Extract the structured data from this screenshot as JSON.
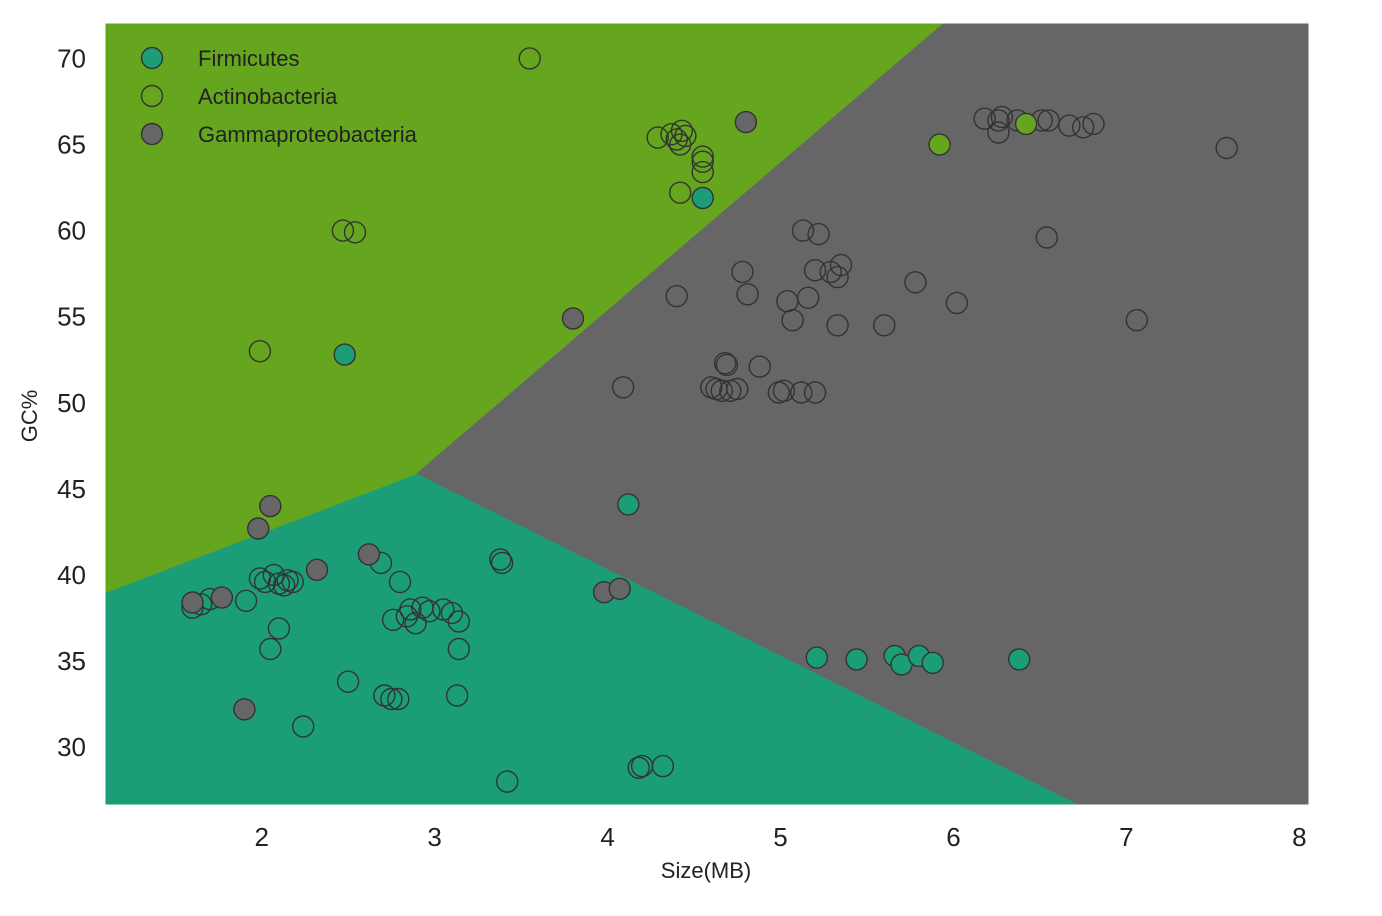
{
  "chart_data": {
    "type": "scatter",
    "title": "",
    "xlabel": "Size(MB)",
    "ylabel": "GC%",
    "xlim": [
      1.1,
      8.05
    ],
    "ylim": [
      26.7,
      72.0
    ],
    "xticks": [
      2,
      3,
      4,
      5,
      6,
      7,
      8
    ],
    "yticks": [
      30,
      35,
      40,
      45,
      50,
      55,
      60,
      65,
      70
    ],
    "grid": false,
    "legend_position": "top-left",
    "decision_regions": [
      {
        "class": "Firmicutes",
        "color": "#1b9e77",
        "polygon": [
          [
            1.1,
            26.7
          ],
          [
            6.72,
            26.7
          ],
          [
            2.9,
            45.9
          ],
          [
            1.1,
            39.0
          ]
        ]
      },
      {
        "class": "Actinobacteria",
        "color": "#66a61e",
        "polygon": [
          [
            1.1,
            72.0
          ],
          [
            5.94,
            72.0
          ],
          [
            2.9,
            45.9
          ],
          [
            1.1,
            39.0
          ]
        ]
      },
      {
        "class": "Gammaproteobacteria",
        "color": "#666666",
        "polygon": [
          [
            5.94,
            72.0
          ],
          [
            8.05,
            72.0
          ],
          [
            8.05,
            26.7
          ],
          [
            6.72,
            26.7
          ],
          [
            2.9,
            45.9
          ]
        ]
      }
    ],
    "series": [
      {
        "name": "Firmicutes",
        "color": "#1b9e77",
        "points": [
          [
            2.48,
            52.8
          ],
          [
            4.55,
            61.9
          ],
          [
            4.12,
            44.1
          ],
          [
            5.21,
            35.2
          ],
          [
            5.44,
            35.1
          ],
          [
            5.66,
            35.3
          ],
          [
            5.7,
            34.8
          ],
          [
            5.8,
            35.3
          ],
          [
            5.88,
            34.9
          ],
          [
            6.38,
            35.1
          ]
        ]
      },
      {
        "name": "Actinobacteria",
        "color": "#66a61e",
        "points": [
          [
            3.55,
            70.0
          ],
          [
            5.92,
            65.0
          ],
          [
            6.42,
            66.2
          ]
        ]
      },
      {
        "name": "Gammaproteobacteria",
        "color": "#666666",
        "points": [
          [
            4.8,
            66.3
          ],
          [
            3.8,
            54.9
          ],
          [
            1.6,
            38.4
          ],
          [
            1.77,
            38.7
          ],
          [
            1.9,
            32.2
          ],
          [
            1.98,
            42.7
          ],
          [
            2.05,
            44.0
          ],
          [
            2.62,
            41.2
          ],
          [
            2.32,
            40.3
          ],
          [
            3.98,
            39.0
          ],
          [
            4.07,
            39.2
          ]
        ]
      }
    ],
    "background_points": [
      [
        2.47,
        60.0
      ],
      [
        2.54,
        59.9
      ],
      [
        1.99,
        53.0
      ],
      [
        4.29,
        65.4
      ],
      [
        4.37,
        65.6
      ],
      [
        4.4,
        65.3
      ],
      [
        4.42,
        65.0
      ],
      [
        4.45,
        65.5
      ],
      [
        4.43,
        65.8
      ],
      [
        4.55,
        64.3
      ],
      [
        4.55,
        64.0
      ],
      [
        4.55,
        63.4
      ],
      [
        4.42,
        62.2
      ],
      [
        6.18,
        66.5
      ],
      [
        6.26,
        66.4
      ],
      [
        6.28,
        66.6
      ],
      [
        6.26,
        65.7
      ],
      [
        6.37,
        66.4
      ],
      [
        6.51,
        66.4
      ],
      [
        6.55,
        66.4
      ],
      [
        6.67,
        66.1
      ],
      [
        6.75,
        66.0
      ],
      [
        6.81,
        66.2
      ],
      [
        7.58,
        64.8
      ],
      [
        5.13,
        60.0
      ],
      [
        5.22,
        59.8
      ],
      [
        6.54,
        59.6
      ],
      [
        4.78,
        57.6
      ],
      [
        5.2,
        57.7
      ],
      [
        5.29,
        57.6
      ],
      [
        5.33,
        57.3
      ],
      [
        5.35,
        58.0
      ],
      [
        5.78,
        57.0
      ],
      [
        4.4,
        56.2
      ],
      [
        4.81,
        56.3
      ],
      [
        5.04,
        55.9
      ],
      [
        5.16,
        56.1
      ],
      [
        6.02,
        55.8
      ],
      [
        5.07,
        54.8
      ],
      [
        5.33,
        54.5
      ],
      [
        5.6,
        54.5
      ],
      [
        7.06,
        54.8
      ],
      [
        4.68,
        52.3
      ],
      [
        4.69,
        52.2
      ],
      [
        4.88,
        52.1
      ],
      [
        4.09,
        50.9
      ],
      [
        4.6,
        50.9
      ],
      [
        4.63,
        50.8
      ],
      [
        4.66,
        50.7
      ],
      [
        4.71,
        50.7
      ],
      [
        4.75,
        50.8
      ],
      [
        4.99,
        50.6
      ],
      [
        5.02,
        50.7
      ],
      [
        5.12,
        50.6
      ],
      [
        5.2,
        50.6
      ],
      [
        1.6,
        38.1
      ],
      [
        1.65,
        38.3
      ],
      [
        1.7,
        38.6
      ],
      [
        1.91,
        38.5
      ],
      [
        1.99,
        39.8
      ],
      [
        2.02,
        39.6
      ],
      [
        2.07,
        40.0
      ],
      [
        2.1,
        39.5
      ],
      [
        2.13,
        39.4
      ],
      [
        2.15,
        39.7
      ],
      [
        2.18,
        39.6
      ],
      [
        2.1,
        36.9
      ],
      [
        2.05,
        35.7
      ],
      [
        2.24,
        31.2
      ],
      [
        2.5,
        33.8
      ],
      [
        2.69,
        40.7
      ],
      [
        2.8,
        39.6
      ],
      [
        2.76,
        37.4
      ],
      [
        2.84,
        37.6
      ],
      [
        2.86,
        38.0
      ],
      [
        2.89,
        37.2
      ],
      [
        2.93,
        38.1
      ],
      [
        2.97,
        37.9
      ],
      [
        3.05,
        38.0
      ],
      [
        3.1,
        37.8
      ],
      [
        3.14,
        37.3
      ],
      [
        3.14,
        35.7
      ],
      [
        3.13,
        33.0
      ],
      [
        2.71,
        33.0
      ],
      [
        2.75,
        32.8
      ],
      [
        2.79,
        32.8
      ],
      [
        3.38,
        40.9
      ],
      [
        3.39,
        40.7
      ],
      [
        3.42,
        28.0
      ],
      [
        4.18,
        28.8
      ],
      [
        4.2,
        28.9
      ],
      [
        4.32,
        28.9
      ]
    ]
  }
}
